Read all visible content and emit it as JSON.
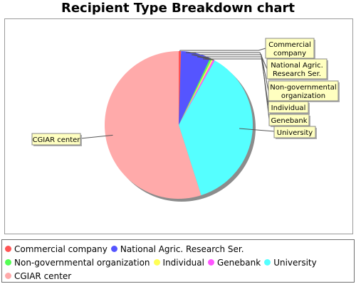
{
  "chart_data": {
    "type": "pie",
    "title": "Recipient Type Breakdown chart",
    "slices": [
      {
        "label": "Commercial company",
        "value": 0.5,
        "color": "#ff5555"
      },
      {
        "label": "National Agric. Research Ser.",
        "value": 6.5,
        "color": "#5555ff"
      },
      {
        "label": "Non-governmental organization",
        "value": 0.4,
        "color": "#55ff55"
      },
      {
        "label": "Individual",
        "value": 0.3,
        "color": "#ffff55"
      },
      {
        "label": "Genebank",
        "value": 0.4,
        "color": "#ff55ff"
      },
      {
        "label": "University",
        "value": 37.0,
        "color": "#55ffff"
      },
      {
        "label": "CGIAR center",
        "value": 54.9,
        "color": "#ffaaaa"
      }
    ],
    "legend_position": "bottom"
  },
  "labels": {
    "commercial": [
      "Commercial",
      "company"
    ],
    "nars": [
      "National Agric.",
      "Research Ser."
    ],
    "ngo": [
      "Non-governmental",
      "organization"
    ],
    "individual": [
      "Individual"
    ],
    "genebank": [
      "Genebank"
    ],
    "university": [
      "University"
    ],
    "cgiar": [
      "CGIAR center"
    ]
  }
}
